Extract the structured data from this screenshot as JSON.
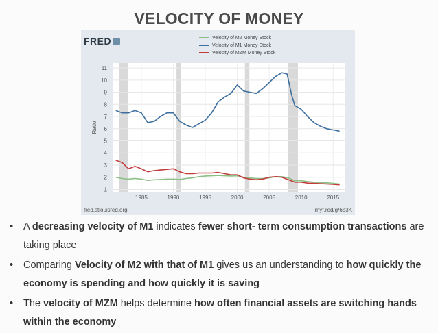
{
  "slide": {
    "title": "VELOCITY OF MONEY",
    "logo": "FRED",
    "source_left": "fred.stlouisfed.org",
    "source_right": "myf.red/g/6b3K"
  },
  "bullets": [
    [
      {
        "t": "A ",
        "b": false
      },
      {
        "t": "decreasing velocity of M1",
        "b": true
      },
      {
        "t": " indicates ",
        "b": false
      },
      {
        "t": "fewer short- term consumption transactions",
        "b": true
      },
      {
        "t": " are taking place",
        "b": false
      }
    ],
    [
      {
        "t": "Comparing ",
        "b": false
      },
      {
        "t": "Velocity of M2 with that of M1",
        "b": true
      },
      {
        "t": " gives us an understanding to ",
        "b": false
      },
      {
        "t": "how quickly the economy is spending and how quickly it is saving",
        "b": true
      }
    ],
    [
      {
        "t": "The ",
        "b": false
      },
      {
        "t": "velocity of MZM",
        "b": true
      },
      {
        "t": " helps determine ",
        "b": false
      },
      {
        "t": "how often financial assets are switching hands within the economy",
        "b": true
      }
    ]
  ],
  "chart_data": {
    "type": "line",
    "title": "",
    "xlabel": "",
    "ylabel": "Ratio",
    "xlim": [
      1980.5,
      2016.8
    ],
    "ylim": [
      0.8,
      11.4
    ],
    "yticks": [
      1,
      2,
      3,
      4,
      5,
      6,
      7,
      8,
      9,
      10,
      11
    ],
    "xticks": [
      1985,
      1990,
      1995,
      2000,
      2005,
      2010,
      2015
    ],
    "grid": true,
    "legend": "top",
    "recessions": [
      [
        1981.5,
        1982.9
      ],
      [
        1990.5,
        1991.2
      ],
      [
        2001.2,
        2001.9
      ],
      [
        2007.9,
        2009.5
      ]
    ],
    "series": [
      {
        "name": "Velocity of M2 Money Stock",
        "color": "#8bbf86",
        "x": [
          1981,
          1982,
          1983,
          1984,
          1985,
          1986,
          1987,
          1988,
          1989,
          1990,
          1991,
          1992,
          1993,
          1994,
          1995,
          1996,
          1997,
          1998,
          1999,
          2000,
          2001,
          2002,
          2003,
          2004,
          2005,
          2006,
          2007,
          2008,
          2009,
          2010,
          2011,
          2012,
          2013,
          2014,
          2015,
          2016
        ],
        "y": [
          2.0,
          1.9,
          1.85,
          1.9,
          1.85,
          1.75,
          1.8,
          1.82,
          1.85,
          1.85,
          1.82,
          1.9,
          1.95,
          2.05,
          2.1,
          2.12,
          2.15,
          2.12,
          2.1,
          2.12,
          2.0,
          1.95,
          1.9,
          1.9,
          1.95,
          2.05,
          2.05,
          1.95,
          1.72,
          1.72,
          1.65,
          1.6,
          1.57,
          1.55,
          1.5,
          1.44
        ]
      },
      {
        "name": "Velocity of M1 Money Stock",
        "color": "#3d6f9e",
        "x": [
          1981,
          1982,
          1983,
          1984,
          1985,
          1986,
          1987,
          1988,
          1989,
          1990,
          1991,
          1992,
          1993,
          1994,
          1995,
          1996,
          1997,
          1998,
          1999,
          2000,
          2001,
          2002,
          2003,
          2004,
          2005,
          2006,
          2007,
          2007.8,
          2008.5,
          2009,
          2010,
          2011,
          2012,
          2013,
          2014,
          2015,
          2016
        ],
        "y": [
          7.5,
          7.3,
          7.3,
          7.5,
          7.3,
          6.5,
          6.6,
          7.0,
          7.3,
          7.3,
          6.6,
          6.3,
          6.1,
          6.4,
          6.7,
          7.3,
          8.2,
          8.6,
          8.9,
          9.6,
          9.1,
          9.0,
          8.9,
          9.3,
          9.8,
          10.3,
          10.6,
          10.5,
          8.8,
          7.9,
          7.6,
          7.0,
          6.5,
          6.2,
          6.0,
          5.9,
          5.8
        ]
      },
      {
        "name": "Velocity of MZM Money Stock",
        "color": "#c23a3a",
        "x": [
          1981,
          1982,
          1983,
          1984,
          1985,
          1986,
          1987,
          1988,
          1989,
          1990,
          1991,
          1992,
          1993,
          1994,
          1995,
          1996,
          1997,
          1998,
          1999,
          2000,
          2001,
          2002,
          2003,
          2004,
          2005,
          2006,
          2007,
          2008,
          2009,
          2010,
          2011,
          2012,
          2013,
          2014,
          2015,
          2016
        ],
        "y": [
          3.4,
          3.2,
          2.7,
          2.9,
          2.7,
          2.45,
          2.55,
          2.6,
          2.65,
          2.7,
          2.45,
          2.3,
          2.3,
          2.35,
          2.35,
          2.35,
          2.4,
          2.3,
          2.2,
          2.2,
          1.95,
          1.85,
          1.8,
          1.85,
          2.0,
          2.05,
          2.0,
          1.8,
          1.6,
          1.6,
          1.52,
          1.5,
          1.47,
          1.45,
          1.42,
          1.38
        ]
      }
    ]
  }
}
